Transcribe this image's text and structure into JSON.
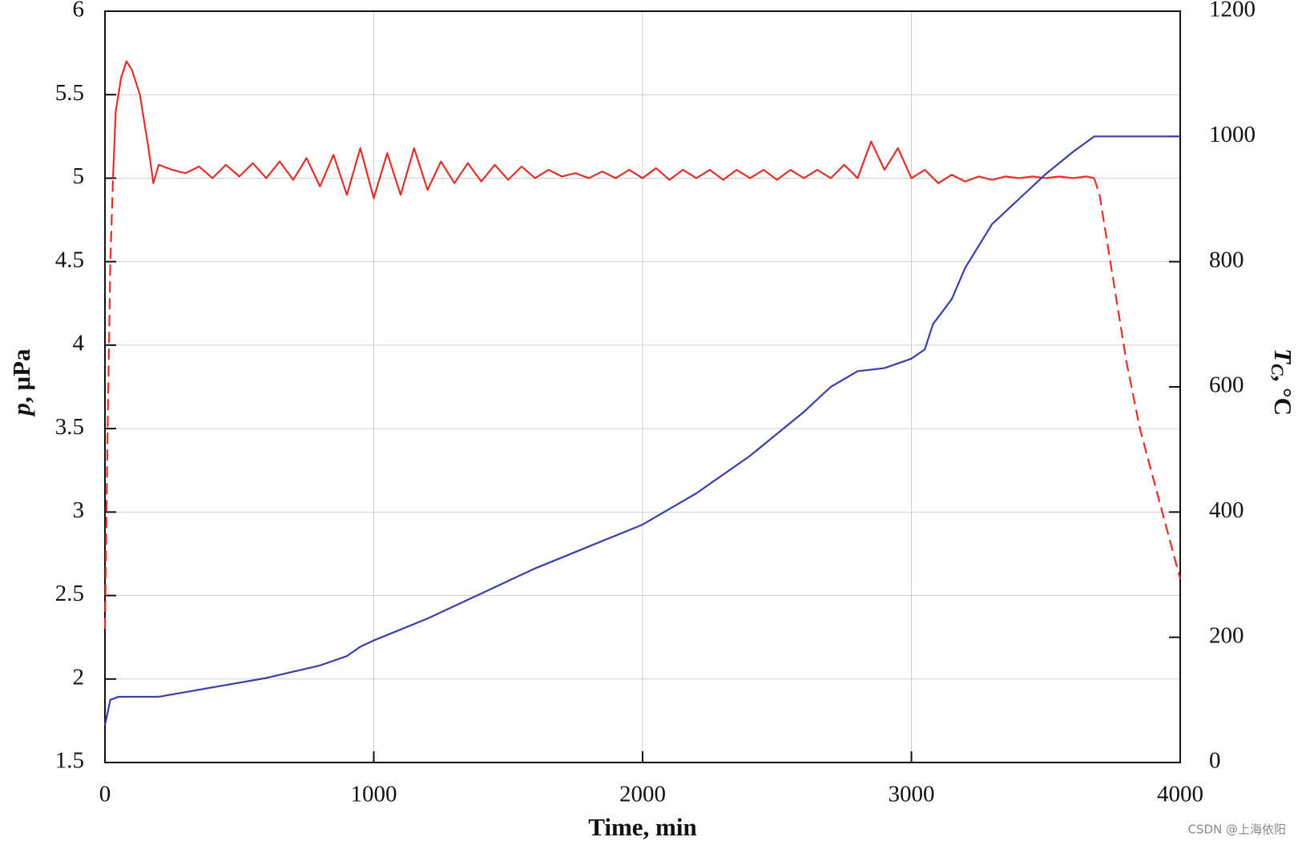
{
  "chart_data": {
    "type": "line",
    "xlabel": "Time, min",
    "ylabel": [
      "p",
      ", μPa"
    ],
    "y2label": [
      "T",
      "C",
      ", °C"
    ],
    "watermark": "CSDN @上海依阳",
    "xlim": [
      0,
      4000
    ],
    "xticks": [
      0,
      1000,
      2000,
      3000,
      4000
    ],
    "ylim": [
      1.5,
      6
    ],
    "yticks": [
      1.5,
      2,
      2.5,
      3,
      3.5,
      4,
      4.5,
      5,
      5.5,
      6
    ],
    "y2lim": [
      0,
      1200
    ],
    "y2ticks": [
      0,
      200,
      400,
      600,
      800,
      1000,
      1200
    ],
    "grid": true,
    "series": [
      {
        "color": "#e0302a",
        "dash": true,
        "axis": "y",
        "x": [
          0,
          10,
          20,
          30
        ],
        "values": [
          2.3,
          3.5,
          4.5,
          5.0
        ]
      },
      {
        "color": "#e0302a",
        "dash": false,
        "axis": "y",
        "x": [
          30,
          40,
          60,
          80,
          100,
          130,
          160,
          180,
          200,
          250,
          300,
          350,
          400,
          450,
          500,
          550,
          600,
          650,
          700,
          750,
          800,
          850,
          900,
          950,
          1000,
          1050,
          1100,
          1150,
          1200,
          1250,
          1300,
          1350,
          1400,
          1450,
          1500,
          1550,
          1600,
          1650,
          1700,
          1750,
          1800,
          1850,
          1900,
          1950,
          2000,
          2050,
          2100,
          2150,
          2200,
          2250,
          2300,
          2350,
          2400,
          2450,
          2500,
          2550,
          2600,
          2650,
          2700,
          2750,
          2800,
          2850,
          2900,
          2950,
          3000,
          3050,
          3100,
          3150,
          3200,
          3250,
          3300,
          3350,
          3400,
          3450,
          3500,
          3550,
          3600,
          3650,
          3680
        ],
        "values": [
          5.0,
          5.4,
          5.6,
          5.7,
          5.65,
          5.5,
          5.2,
          4.97,
          5.08,
          5.05,
          5.03,
          5.07,
          5.0,
          5.08,
          5.01,
          5.09,
          5.0,
          5.1,
          4.99,
          5.12,
          4.95,
          5.14,
          4.9,
          5.18,
          4.88,
          5.15,
          4.9,
          5.18,
          4.93,
          5.1,
          4.97,
          5.09,
          4.98,
          5.08,
          4.99,
          5.07,
          5.0,
          5.05,
          5.01,
          5.03,
          5.0,
          5.04,
          5.0,
          5.05,
          5.0,
          5.06,
          4.99,
          5.05,
          5.0,
          5.05,
          4.99,
          5.05,
          5.0,
          5.05,
          4.99,
          5.05,
          5.0,
          5.05,
          5.0,
          5.08,
          5.0,
          5.22,
          5.05,
          5.18,
          5.0,
          5.05,
          4.97,
          5.02,
          4.98,
          5.01,
          4.99,
          5.01,
          5.0,
          5.01,
          5.0,
          5.01,
          5.0,
          5.01,
          5.0
        ]
      },
      {
        "color": "#e0302a",
        "dash": true,
        "axis": "y",
        "x": [
          3680,
          3700,
          3750,
          3800,
          3850,
          3900,
          3950,
          4000
        ],
        "values": [
          5.0,
          4.9,
          4.4,
          3.9,
          3.5,
          3.2,
          2.9,
          2.6
        ]
      },
      {
        "color": "#3a3fa8",
        "dash": false,
        "axis": "y2",
        "x": [
          0,
          20,
          50,
          200,
          400,
          600,
          800,
          900,
          950,
          1000,
          1200,
          1400,
          1600,
          1800,
          2000,
          2200,
          2400,
          2600,
          2700,
          2800,
          2900,
          3000,
          3050,
          3080,
          3150,
          3200,
          3300,
          3400,
          3500,
          3600,
          3680,
          4000
        ],
        "values": [
          60,
          100,
          105,
          105,
          120,
          135,
          155,
          170,
          185,
          195,
          230,
          270,
          310,
          345,
          380,
          430,
          490,
          560,
          600,
          625,
          630,
          645,
          660,
          700,
          740,
          790,
          860,
          900,
          940,
          975,
          1000,
          1000
        ]
      }
    ]
  }
}
